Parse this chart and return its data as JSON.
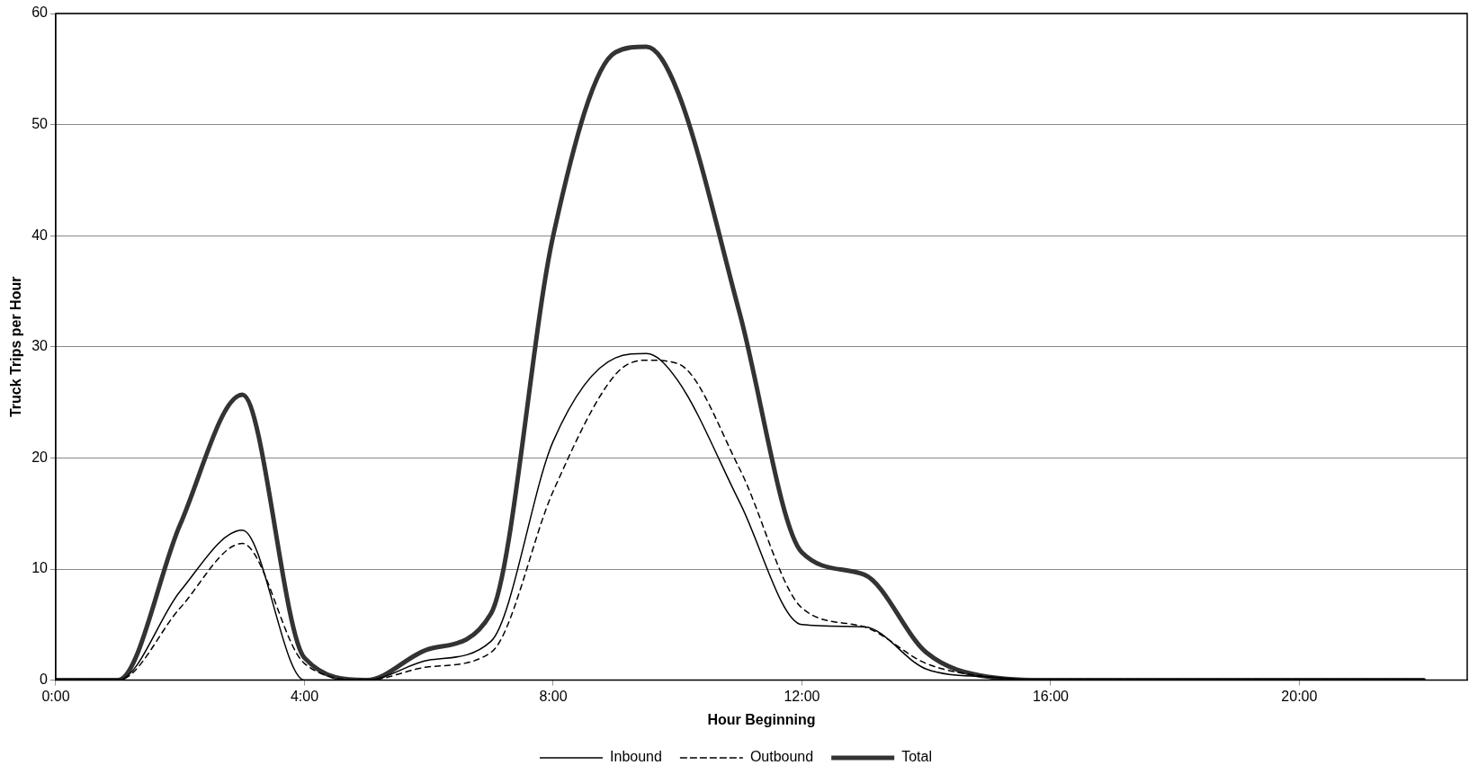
{
  "chart_data": {
    "type": "line",
    "xlabel": "Hour Beginning",
    "ylabel": "Truck Trips per Hour",
    "x": [
      0,
      1,
      2,
      3,
      4,
      5,
      6,
      7,
      8,
      9,
      9.5,
      10,
      11,
      12,
      13,
      14,
      15,
      16,
      17,
      18,
      19,
      20,
      21,
      22
    ],
    "series": [
      {
        "name": "Inbound",
        "color": "#000000",
        "line_style": "solid",
        "values": [
          0,
          0,
          8,
          13.5,
          0,
          0,
          1.8,
          3.5,
          21.5,
          29,
          29.4,
          27,
          16,
          5,
          4.8,
          1,
          0.3,
          0,
          0,
          0,
          0,
          0,
          0,
          0
        ]
      },
      {
        "name": "Outbound",
        "color": "#000000",
        "line_style": "dashed",
        "values": [
          0,
          0,
          6.5,
          12.3,
          1.5,
          0,
          1.2,
          2.5,
          17,
          27.5,
          28.8,
          28.5,
          19,
          6.5,
          4.8,
          1.5,
          0.3,
          0,
          0,
          0,
          0,
          0,
          0,
          0
        ]
      },
      {
        "name": "Total",
        "color": "#333333",
        "line_style": "solid",
        "values": [
          0,
          0,
          14,
          25.7,
          2,
          0,
          2.8,
          6,
          40,
          56.5,
          57,
          53,
          33,
          11.5,
          9.5,
          2.5,
          0.3,
          0,
          0,
          0,
          0,
          0,
          0,
          0
        ]
      }
    ],
    "xlim": [
      0,
      22.7
    ],
    "xticks": [
      {
        "value": 0,
        "label": "0:00"
      },
      {
        "value": 4,
        "label": "4:00"
      },
      {
        "value": 8,
        "label": "8:00"
      },
      {
        "value": 12,
        "label": "12:00"
      },
      {
        "value": 16,
        "label": "16:00"
      },
      {
        "value": 20,
        "label": "20:00"
      }
    ],
    "ylim": [
      0,
      60
    ],
    "yticks": [
      0,
      10,
      20,
      30,
      40,
      50,
      60
    ],
    "grid": "y",
    "legend": "bottom",
    "marker": "none"
  }
}
